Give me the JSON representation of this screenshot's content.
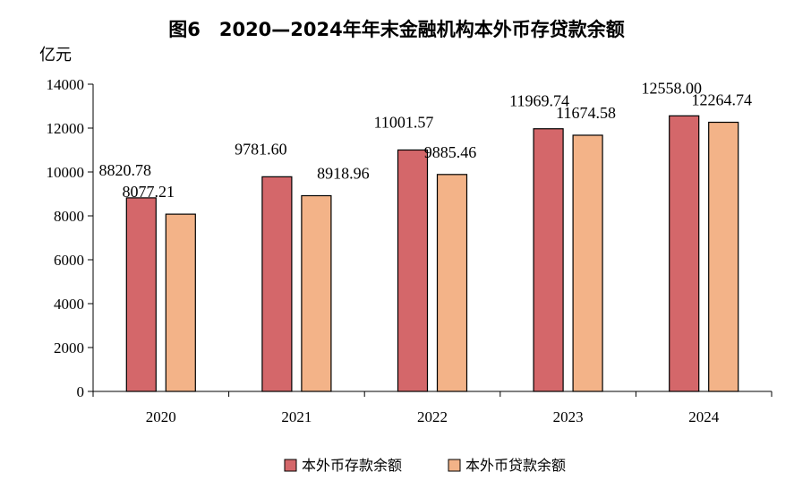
{
  "chart_data": {
    "type": "bar",
    "title": "图6　2020—2024年年末金融机构本外币存贷款余额",
    "unit_label": "亿元",
    "categories": [
      "2020",
      "2021",
      "2022",
      "2023",
      "2024"
    ],
    "series": [
      {
        "name": "本外币存款余额",
        "color": "#d4676a",
        "values": [
          8820.78,
          9781.6,
          11001.57,
          11969.74,
          12558.0
        ],
        "labels": [
          "8820.78",
          "9781.60",
          "11001.57",
          "11969.74",
          "12558.00"
        ]
      },
      {
        "name": "本外币贷款余额",
        "color": "#f3b388",
        "values": [
          8077.21,
          8918.96,
          9885.46,
          11674.58,
          12264.74
        ],
        "labels": [
          "8077.21",
          "8918.96",
          "9885.46",
          "11674.58",
          "12264.74"
        ]
      }
    ],
    "ylim": [
      0,
      14000
    ],
    "yticks": [
      "0",
      "2000",
      "4000",
      "6000",
      "8000",
      "10000",
      "12000",
      "14000"
    ],
    "grid": false,
    "legend_position": "bottom"
  }
}
